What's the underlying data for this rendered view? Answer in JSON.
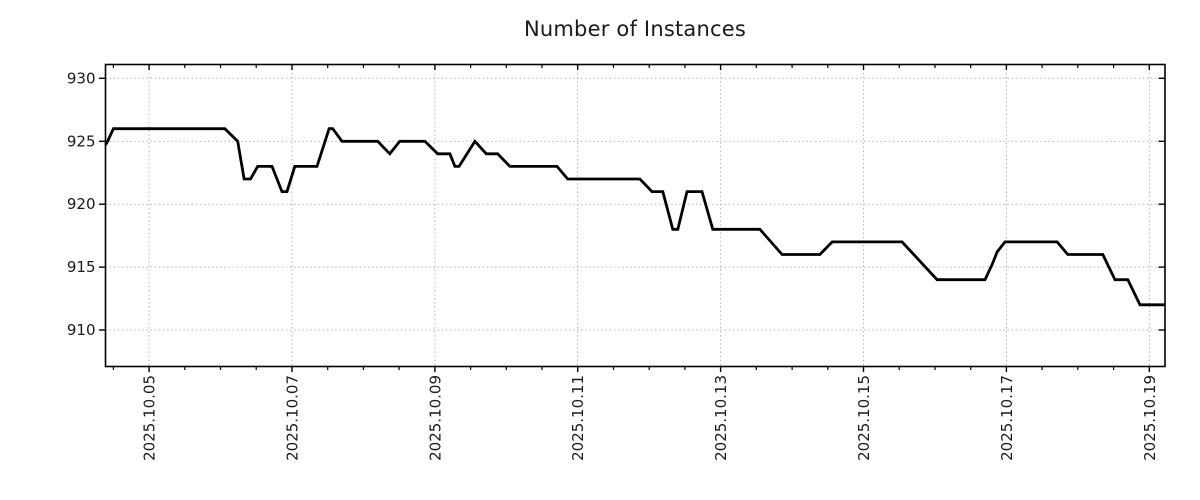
{
  "chart_data": {
    "type": "line",
    "title": "Number of Instances",
    "xlabel": "",
    "ylabel": "",
    "background": "#ffffff",
    "text_color": "#1a1a1a",
    "x_axis": {
      "unit": "date (day of October 2025)",
      "xlim": [
        4.39,
        19.22
      ],
      "minor_tick_step_days": 0.5,
      "major_ticks": [
        {
          "day": 5,
          "label": "2025.10.05"
        },
        {
          "day": 7,
          "label": "2025.10.07"
        },
        {
          "day": 9,
          "label": "2025.10.09"
        },
        {
          "day": 11,
          "label": "2025.10.11"
        },
        {
          "day": 13,
          "label": "2025.10.13"
        },
        {
          "day": 15,
          "label": "2025.10.15"
        },
        {
          "day": 17,
          "label": "2025.10.17"
        },
        {
          "day": 19,
          "label": "2025.10.19"
        }
      ]
    },
    "y_axis": {
      "ylim": [
        907.1,
        931.1
      ],
      "ticks": [
        {
          "value": 910,
          "label": "910"
        },
        {
          "value": 915,
          "label": "915"
        },
        {
          "value": 920,
          "label": "920"
        },
        {
          "value": 925,
          "label": "925"
        },
        {
          "value": 930,
          "label": "930"
        }
      ]
    },
    "grid": {
      "visible": true,
      "style": "dotted",
      "color": "#b4b4b4"
    },
    "legend": {
      "visible": false
    },
    "series": [
      {
        "color": "#000000",
        "line_width": 2.8,
        "points_day_value": [
          [
            4.39,
            924.7
          ],
          [
            4.42,
            925
          ],
          [
            4.5,
            926
          ],
          [
            6.06,
            926
          ],
          [
            6.24,
            925
          ],
          [
            6.33,
            922
          ],
          [
            6.42,
            922
          ],
          [
            6.52,
            923
          ],
          [
            6.72,
            923
          ],
          [
            6.86,
            921
          ],
          [
            6.93,
            921
          ],
          [
            7.04,
            923
          ],
          [
            7.35,
            923
          ],
          [
            7.52,
            926
          ],
          [
            7.57,
            926
          ],
          [
            7.7,
            925
          ],
          [
            8.2,
            925
          ],
          [
            8.37,
            924
          ],
          [
            8.51,
            925
          ],
          [
            8.86,
            925
          ],
          [
            9.04,
            924
          ],
          [
            9.21,
            924
          ],
          [
            9.28,
            923
          ],
          [
            9.34,
            923
          ],
          [
            9.56,
            925
          ],
          [
            9.72,
            924
          ],
          [
            9.88,
            924
          ],
          [
            10.05,
            923
          ],
          [
            10.71,
            923
          ],
          [
            10.86,
            922
          ],
          [
            11.87,
            922
          ],
          [
            12.04,
            921
          ],
          [
            12.19,
            921
          ],
          [
            12.33,
            918
          ],
          [
            12.4,
            918
          ],
          [
            12.53,
            921
          ],
          [
            12.74,
            921
          ],
          [
            12.89,
            918
          ],
          [
            13.55,
            918
          ],
          [
            13.86,
            916
          ],
          [
            14.39,
            916
          ],
          [
            14.56,
            917
          ],
          [
            15.54,
            917
          ],
          [
            16.03,
            914
          ],
          [
            16.7,
            914
          ],
          [
            16.8,
            915.2
          ],
          [
            16.87,
            916.2
          ],
          [
            16.98,
            917
          ],
          [
            17.71,
            917
          ],
          [
            17.86,
            916
          ],
          [
            18.35,
            916
          ],
          [
            18.52,
            914
          ],
          [
            18.7,
            914
          ],
          [
            18.87,
            912
          ],
          [
            19.22,
            912
          ]
        ]
      }
    ]
  }
}
